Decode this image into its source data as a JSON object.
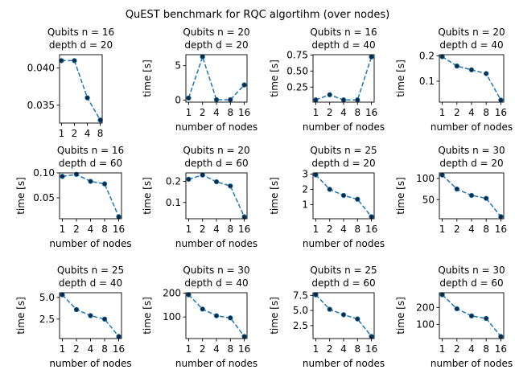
{
  "figure": {
    "title": "QuEST benchmark for RQC algortihm (over nodes)"
  },
  "style": {
    "line_color": "#1f77b4",
    "marker_color": "#0b2a45"
  },
  "chart_data": [
    {
      "type": "line",
      "title": [
        "Qubits n = 16",
        "depth d = 20"
      ],
      "xlabel": "",
      "ylabel": "",
      "categories": [
        "1",
        "2",
        "4",
        "8"
      ],
      "values": [
        0.041,
        0.041,
        0.036,
        0.033
      ],
      "ylim": [
        0.0326,
        0.0418
      ],
      "yticks": [
        0.035,
        0.04
      ],
      "ytick_labels": [
        "0.035",
        "0.040"
      ]
    },
    {
      "type": "line",
      "title": [
        "Qubits n = 20",
        "depth d = 20"
      ],
      "xlabel": "number of nodes",
      "ylabel": "time [s]",
      "categories": [
        "1",
        "2",
        "4",
        "8",
        "16"
      ],
      "values": [
        0.3,
        6.3,
        0.05,
        0.05,
        2.2
      ],
      "ylim": [
        -0.3,
        6.6
      ],
      "yticks": [
        0,
        5
      ],
      "ytick_labels": [
        "0",
        "5"
      ]
    },
    {
      "type": "line",
      "title": [
        "Qubits n = 16",
        "depth d = 40"
      ],
      "xlabel": "number of nodes",
      "ylabel": "time [s]",
      "categories": [
        "1",
        "2",
        "4",
        "8",
        "16"
      ],
      "values": [
        0.05,
        0.13,
        0.05,
        0.05,
        0.72
      ],
      "ylim": [
        0.015,
        0.755
      ],
      "yticks": [
        0.25,
        0.5,
        0.75
      ],
      "ytick_labels": [
        "0.25",
        "0.50",
        "0.75"
      ]
    },
    {
      "type": "line",
      "title": [
        "Qubits n = 20",
        "depth d = 40"
      ],
      "xlabel": "number of nodes",
      "ylabel": "time [s]",
      "categories": [
        "1",
        "2",
        "4",
        "8",
        "16"
      ],
      "values": [
        0.197,
        0.16,
        0.145,
        0.13,
        0.025
      ],
      "ylim": [
        0.017,
        0.205
      ],
      "yticks": [
        0.1,
        0.2
      ],
      "ytick_labels": [
        "0.1",
        "0.2"
      ]
    },
    {
      "type": "line",
      "title": [
        "Qubits n = 16",
        "depth d = 60"
      ],
      "xlabel": "number of nodes",
      "ylabel": "time [s]",
      "categories": [
        "1",
        "2",
        "4",
        "8",
        "16"
      ],
      "values": [
        0.093,
        0.097,
        0.083,
        0.078,
        0.012
      ],
      "ylim": [
        0.008,
        0.1
      ],
      "yticks": [
        0.05,
        0.1
      ],
      "ytick_labels": [
        "0.05",
        "0.10"
      ]
    },
    {
      "type": "line",
      "title": [
        "Qubits n = 20",
        "depth d = 60"
      ],
      "xlabel": "number of nodes",
      "ylabel": "time [s]",
      "categories": [
        "1",
        "2",
        "4",
        "8",
        "16"
      ],
      "values": [
        0.21,
        0.23,
        0.198,
        0.178,
        0.032
      ],
      "ylim": [
        0.023,
        0.24
      ],
      "yticks": [
        0.1,
        0.2
      ],
      "ytick_labels": [
        "0.1",
        "0.2"
      ]
    },
    {
      "type": "line",
      "title": [
        "Qubits n = 25",
        "depth d = 20"
      ],
      "xlabel": "number of nodes",
      "ylabel": "time [s]",
      "categories": [
        "1",
        "2",
        "4",
        "8",
        "16"
      ],
      "values": [
        2.95,
        2.0,
        1.6,
        1.35,
        0.2
      ],
      "ylim": [
        0.07,
        3.08
      ],
      "yticks": [
        1,
        2,
        3
      ],
      "ytick_labels": [
        "1",
        "2",
        "3"
      ]
    },
    {
      "type": "line",
      "title": [
        "Qubits n = 30",
        "depth d = 20"
      ],
      "xlabel": "",
      "ylabel": "time [s]",
      "categories": [
        "1",
        "2",
        "4",
        "8",
        "16"
      ],
      "values": [
        108,
        75,
        60,
        53,
        10
      ],
      "ylim": [
        5,
        113
      ],
      "yticks": [
        50,
        100
      ],
      "ytick_labels": [
        "50",
        "100"
      ]
    },
    {
      "type": "line",
      "title": [
        "Qubits n = 25",
        "depth d = 40"
      ],
      "xlabel": "number of nodes",
      "ylabel": "time [s]",
      "categories": [
        "1",
        "2",
        "4",
        "8",
        "16"
      ],
      "values": [
        5.3,
        3.6,
        2.9,
        2.5,
        0.5
      ],
      "ylim": [
        0.26,
        5.54
      ],
      "yticks": [
        2.5,
        5.0
      ],
      "ytick_labels": [
        "2.5",
        "5.0"
      ]
    },
    {
      "type": "line",
      "title": [
        "Qubits n = 30",
        "depth d = 40"
      ],
      "xlabel": "number of nodes",
      "ylabel": "time [s]",
      "categories": [
        "1",
        "2",
        "4",
        "8",
        "16"
      ],
      "values": [
        193,
        133,
        105,
        96,
        18
      ],
      "ylim": [
        9.2,
        201.8
      ],
      "yticks": [
        100,
        200
      ],
      "ytick_labels": [
        "100",
        "200"
      ]
    },
    {
      "type": "line",
      "title": [
        "Qubits n = 25",
        "depth d = 60"
      ],
      "xlabel": "number of nodes",
      "ylabel": "time [s]",
      "categories": [
        "1",
        "2",
        "4",
        "8",
        "16"
      ],
      "values": [
        7.6,
        5.2,
        4.3,
        3.6,
        0.7
      ],
      "ylim": [
        0.36,
        7.94
      ],
      "yticks": [
        2.5,
        5.0,
        7.5
      ],
      "ytick_labels": [
        "2.5",
        "5.0",
        "7.5"
      ]
    },
    {
      "type": "line",
      "title": [
        "Qubits n = 30",
        "depth d = 60"
      ],
      "xlabel": "number of nodes",
      "ylabel": "time [s]",
      "categories": [
        "1",
        "2",
        "4",
        "8",
        "16"
      ],
      "values": [
        275,
        192,
        150,
        135,
        28
      ],
      "ylim": [
        16,
        287
      ],
      "yticks": [
        100,
        200
      ],
      "ytick_labels": [
        "100",
        "200"
      ]
    }
  ]
}
